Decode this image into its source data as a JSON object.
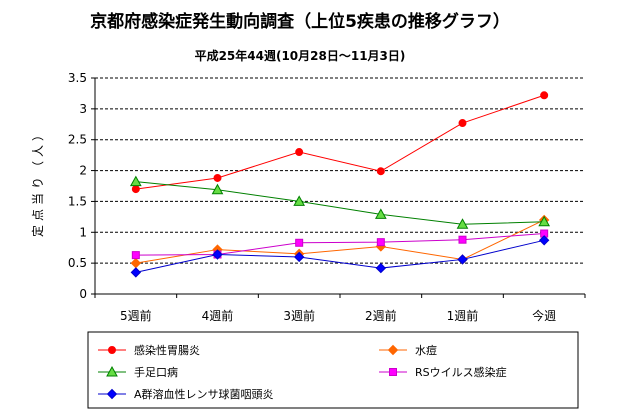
{
  "chart_data": {
    "type": "line",
    "title": "京都府感染症発生動向調査（上位5疾患の推移グラフ）",
    "subtitle": "平成25年44週(10月28日～11月3日)",
    "ylabel": "定点当り（人）",
    "ylabel_chars": [
      "定",
      "点",
      "当",
      "り",
      "（",
      "人",
      "）"
    ],
    "xlabel": "",
    "categories": [
      "5週前",
      "4週前",
      "3週前",
      "2週前",
      "1週前",
      "今週"
    ],
    "ylim": [
      0,
      3.5
    ],
    "yticks": [
      "0",
      "0.5",
      "1",
      "1.5",
      "2",
      "2.5",
      "3",
      "3.5"
    ],
    "grid": true,
    "legend_position": "bottom",
    "series": [
      {
        "name": "感染性胃腸炎",
        "color": "#ff0000",
        "marker": "circle",
        "marker_fill": "#ff0000",
        "values": [
          1.7,
          1.88,
          2.3,
          1.99,
          2.77,
          3.22
        ]
      },
      {
        "name": "水痘",
        "color": "#ff6600",
        "marker": "diamond",
        "marker_fill": "#ff6600",
        "values": [
          0.5,
          0.72,
          0.65,
          0.77,
          0.56,
          1.2
        ]
      },
      {
        "name": "手足口病",
        "color": "#008000",
        "marker": "triangle",
        "marker_fill": "#66dd44",
        "values": [
          1.82,
          1.69,
          1.5,
          1.29,
          1.13,
          1.17
        ]
      },
      {
        "name": "RSウイルス感染症",
        "color": "#cc00cc",
        "marker": "square",
        "marker_fill": "#ff00ff",
        "values": [
          0.63,
          0.64,
          0.83,
          0.84,
          0.88,
          0.98
        ]
      },
      {
        "name": "A群溶血性レンサ球菌咽頭炎",
        "color": "#0000cc",
        "marker": "diamond",
        "marker_fill": "#0000ff",
        "values": [
          0.35,
          0.64,
          0.6,
          0.42,
          0.56,
          0.87
        ]
      }
    ]
  }
}
